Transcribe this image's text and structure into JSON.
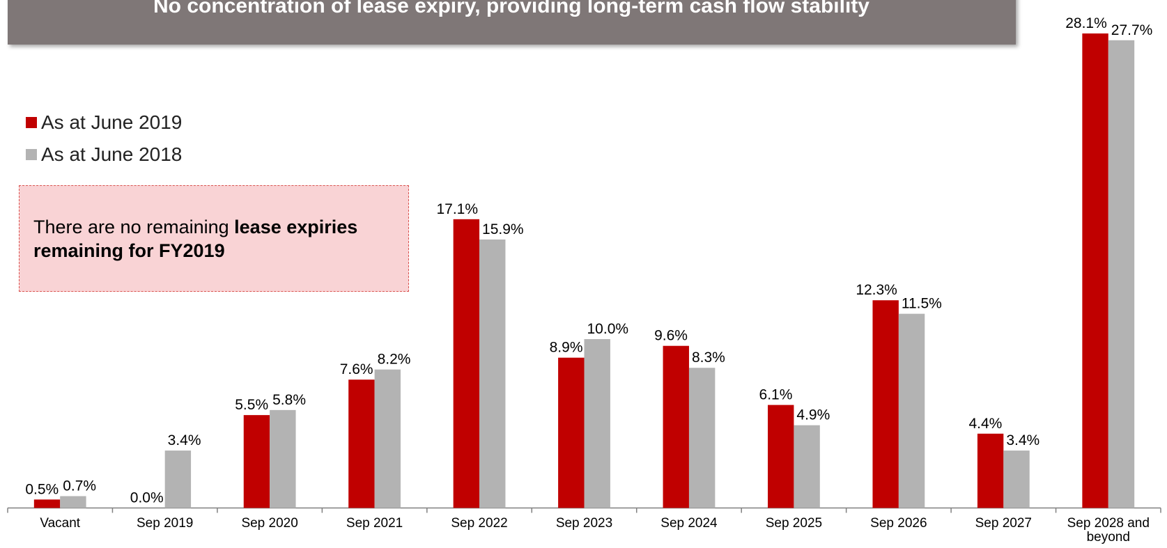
{
  "chart_data": {
    "type": "bar",
    "title": "No concentration of lease expiry, providing long-term cash flow stability",
    "categories": [
      "Vacant",
      "Sep 2019",
      "Sep 2020",
      "Sep 2021",
      "Sep 2022",
      "Sep 2023",
      "Sep 2024",
      "Sep 2025",
      "Sep 2026",
      "Sep 2027",
      "Sep 2028 and beyond"
    ],
    "series": [
      {
        "name": "As at June 2019",
        "color": "#c00000",
        "values": [
          0.5,
          0.0,
          5.5,
          7.6,
          17.1,
          8.9,
          9.6,
          6.1,
          12.3,
          4.4,
          28.1
        ],
        "value_labels": [
          "0.5%",
          "0.0%",
          "5.5%",
          "7.6%",
          "17.1%",
          "8.9%",
          "9.6%",
          "6.1%",
          "12.3%",
          "4.4%",
          "28.1%"
        ]
      },
      {
        "name": "As at June 2018",
        "color": "#b3b3b3",
        "values": [
          0.7,
          3.4,
          5.8,
          8.2,
          15.9,
          10.0,
          8.3,
          4.9,
          11.5,
          3.4,
          27.7
        ],
        "value_labels": [
          "0.7%",
          "3.4%",
          "5.8%",
          "8.2%",
          "15.9%",
          "10.0%",
          "8.3%",
          "4.9%",
          "11.5%",
          "3.4%",
          "27.7%"
        ]
      }
    ],
    "annotation": {
      "text": "There are no remaining ",
      "bold": "lease expiries remaining for FY2019"
    }
  }
}
